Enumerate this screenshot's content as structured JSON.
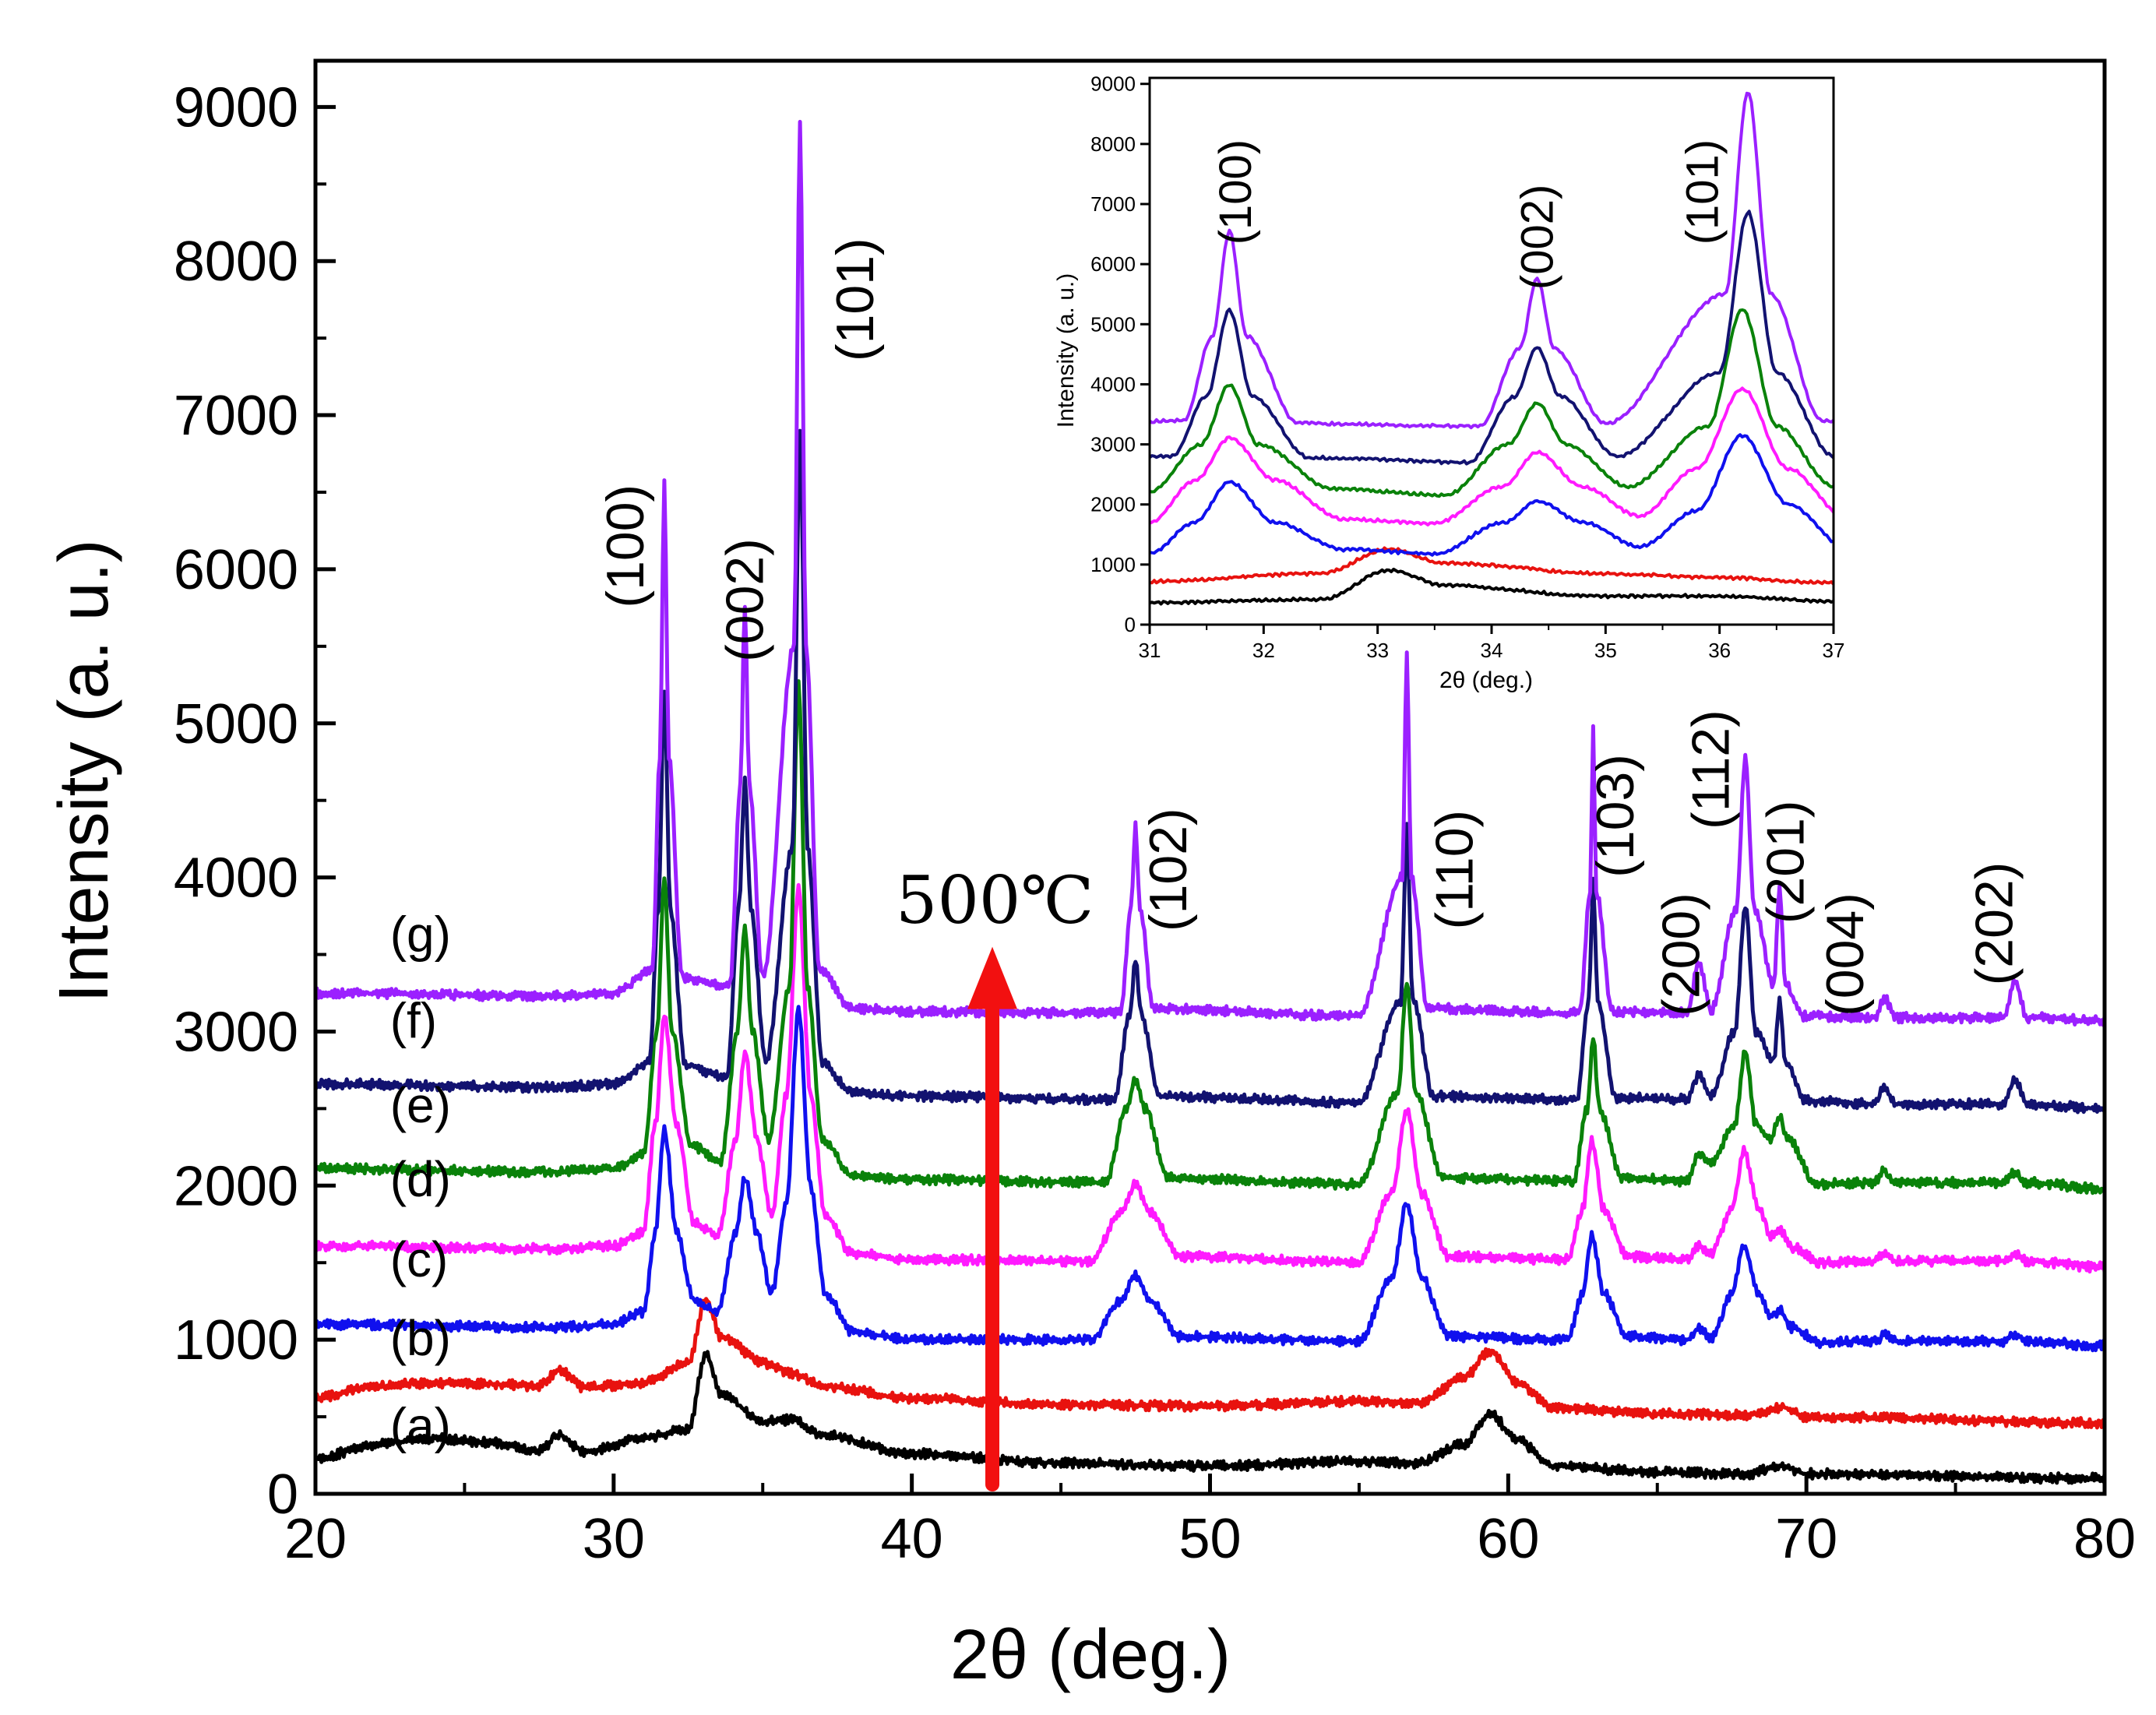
{
  "chart_data": [
    {
      "type": "line",
      "id": "main",
      "xlabel": "2θ (deg.)",
      "ylabel": "Intensity (a. u.)",
      "xlim": [
        20,
        80
      ],
      "ylim": [
        0,
        9300
      ],
      "xticks": [
        "20",
        "30",
        "40",
        "50",
        "60",
        "70",
        "80"
      ],
      "yticks": [
        "0",
        "1000",
        "2000",
        "3000",
        "4000",
        "5000",
        "6000",
        "7000",
        "8000",
        "9000"
      ],
      "annotation": "500℃",
      "arrow": {
        "x": 42.7,
        "y_from": 0,
        "y_to": 3550,
        "color": "#f21010"
      },
      "peak_labels": [
        {
          "text": "(100)",
          "x": 31.0,
          "y": 6150
        },
        {
          "text": "(002)",
          "x": 35.0,
          "y": 5800
        },
        {
          "text": "(101)",
          "x": 38.7,
          "y": 7750
        },
        {
          "text": "(102)",
          "x": 49.2,
          "y": 4050
        },
        {
          "text": "(110)",
          "x": 58.8,
          "y": 4050
        },
        {
          "text": "(103)",
          "x": 64.2,
          "y": 4400
        },
        {
          "text": "(200)",
          "x": 66.4,
          "y": 3500
        },
        {
          "text": "(112)",
          "x": 67.4,
          "y": 4700
        },
        {
          "text": "(201)",
          "x": 69.9,
          "y": 4100
        },
        {
          "text": "(004)",
          "x": 71.9,
          "y": 3500
        },
        {
          "text": "(202)",
          "x": 76.9,
          "y": 3700
        }
      ],
      "series": [
        {
          "name": "(a)",
          "color": "#000000",
          "label_x": 22.5,
          "label_y": 330,
          "x": [
            20,
            22,
            24,
            26,
            27.5,
            28.2,
            29,
            31,
            32.5,
            33.1,
            33.6,
            35,
            36,
            37,
            40,
            45,
            50,
            55,
            57,
            58.5,
            59.4,
            60.3,
            61.5,
            65,
            68,
            69.2,
            70,
            80
          ],
          "y": [
            230,
            320,
            360,
            330,
            280,
            380,
            270,
            360,
            420,
            900,
            650,
            470,
            480,
            380,
            260,
            200,
            180,
            210,
            200,
            320,
            520,
            350,
            180,
            140,
            130,
            180,
            130,
            100
          ]
        },
        {
          "name": "(b)",
          "color": "#e8120f",
          "label_x": 22.5,
          "label_y": 900,
          "x": [
            20,
            22,
            24,
            26,
            27.5,
            28.2,
            29,
            31,
            32.5,
            33.1,
            33.6,
            35,
            36,
            37,
            40,
            45,
            50,
            55,
            57,
            58.5,
            59.4,
            60.3,
            61.5,
            65,
            68,
            69.2,
            70,
            80
          ],
          "y": [
            620,
            700,
            720,
            710,
            700,
            800,
            690,
            720,
            850,
            1260,
            1020,
            850,
            780,
            700,
            620,
            580,
            570,
            600,
            590,
            750,
            930,
            720,
            560,
            520,
            510,
            560,
            500,
            460
          ]
        },
        {
          "name": "(c)",
          "color": "#1010ee",
          "label_x": 22.5,
          "label_y": 1410,
          "x": [
            20,
            28,
            30,
            31,
            31.4,
            31.7,
            32.1,
            32.7,
            33.5,
            34.1,
            34.4,
            34.8,
            35.3,
            35.8,
            36.2,
            36.6,
            37.1,
            38,
            40,
            46,
            47,
            47.5,
            48,
            49,
            55,
            56.1,
            56.6,
            57.1,
            58,
            62,
            62.5,
            62.8,
            63.2,
            64,
            66,
            66.4,
            66.8,
            67.5,
            67.9,
            68.4,
            68.8,
            69.1,
            69.5,
            70.5,
            72.3,
            72.6,
            73,
            76.6,
            77,
            77.4,
            80
          ],
          "y": [
            1100,
            1080,
            1100,
            1180,
            1700,
            2380,
            1700,
            1250,
            1180,
            1700,
            2050,
            1700,
            1300,
            1900,
            3150,
            2000,
            1300,
            1050,
            1000,
            1000,
            1250,
            1420,
            1250,
            1020,
            990,
            1400,
            1880,
            1400,
            1020,
            1000,
            1300,
            1680,
            1300,
            1020,
            1000,
            1070,
            1010,
            1300,
            1610,
            1300,
            1150,
            1190,
            1080,
            980,
            990,
            1030,
            990,
            990,
            1040,
            990,
            960
          ]
        },
        {
          "name": "(d)",
          "color": "#ff1aff",
          "label_x": 22.5,
          "label_y": 1930,
          "x": [
            20,
            28,
            30,
            31,
            31.4,
            31.7,
            32.1,
            32.7,
            33.5,
            34.1,
            34.4,
            34.8,
            35.3,
            35.8,
            36.2,
            36.6,
            37.1,
            38,
            40,
            46,
            47,
            47.5,
            48,
            49,
            55,
            56.1,
            56.6,
            57.1,
            58,
            62,
            62.5,
            62.8,
            63.2,
            64,
            66,
            66.4,
            66.8,
            67.5,
            67.9,
            68.4,
            68.8,
            69.1,
            69.5,
            70.5,
            72.3,
            72.6,
            73,
            76.6,
            77,
            77.4,
            80
          ],
          "y": [
            1610,
            1590,
            1610,
            1700,
            2400,
            3100,
            2400,
            1760,
            1680,
            2300,
            2870,
            2300,
            1800,
            2600,
            3930,
            2600,
            1800,
            1560,
            1520,
            1510,
            1820,
            2010,
            1820,
            1540,
            1500,
            1950,
            2490,
            1950,
            1540,
            1520,
            1850,
            2290,
            1850,
            1540,
            1520,
            1610,
            1560,
            1850,
            2230,
            1850,
            1680,
            1720,
            1600,
            1500,
            1510,
            1560,
            1510,
            1510,
            1560,
            1510,
            1470
          ]
        },
        {
          "name": "(e)",
          "color": "#0a820a",
          "label_x": 22.5,
          "label_y": 2410,
          "x": [
            20,
            28,
            30,
            31,
            31.45,
            31.7,
            31.95,
            32.6,
            33.6,
            34.15,
            34.4,
            34.65,
            35.2,
            35.9,
            36.2,
            36.5,
            37.0,
            38,
            40,
            46.5,
            47.2,
            47.5,
            47.8,
            48.6,
            55,
            56.3,
            56.6,
            56.9,
            57.8,
            62.2,
            62.65,
            62.85,
            63.05,
            63.8,
            66,
            66.4,
            66.8,
            67.6,
            67.95,
            68.3,
            68.8,
            69.1,
            69.4,
            70.3,
            72.3,
            72.6,
            73,
            76.6,
            77,
            77.4,
            80
          ],
          "y": [
            2110,
            2090,
            2110,
            2200,
            3000,
            4000,
            3000,
            2260,
            2160,
            3000,
            3680,
            3000,
            2300,
            3300,
            5250,
            3300,
            2300,
            2060,
            2040,
            2020,
            2500,
            2690,
            2500,
            2050,
            2010,
            2600,
            3310,
            2600,
            2050,
            2030,
            2500,
            2960,
            2500,
            2050,
            2030,
            2210,
            2150,
            2400,
            2870,
            2400,
            2300,
            2440,
            2300,
            2010,
            2020,
            2100,
            2020,
            2020,
            2090,
            2020,
            1980
          ]
        },
        {
          "name": "(f)",
          "color": "#121270",
          "label_x": 22.5,
          "label_y": 2960,
          "x": [
            20,
            28,
            30,
            31.2,
            31.5,
            31.7,
            31.9,
            32.4,
            33.8,
            34.2,
            34.4,
            34.6,
            35.1,
            36.0,
            36.25,
            36.5,
            37.0,
            38,
            40,
            46.8,
            47.3,
            47.5,
            47.7,
            48.3,
            55,
            56.4,
            56.6,
            56.8,
            57.5,
            62.3,
            62.7,
            62.85,
            63.0,
            63.6,
            66,
            66.4,
            66.8,
            67.6,
            67.95,
            68.3,
            68.9,
            69.1,
            69.3,
            70.0,
            72.3,
            72.6,
            73,
            76.6,
            77,
            77.4,
            80
          ],
          "y": [
            2660,
            2640,
            2660,
            2800,
            3800,
            5230,
            3800,
            2780,
            2700,
            3800,
            4620,
            3800,
            2800,
            4200,
            6870,
            4200,
            2800,
            2600,
            2580,
            2560,
            3100,
            3460,
            3100,
            2580,
            2540,
            3200,
            4320,
            3200,
            2580,
            2560,
            3200,
            3960,
            3200,
            2570,
            2560,
            2720,
            2580,
            3000,
            3810,
            3000,
            2800,
            3190,
            2800,
            2550,
            2530,
            2640,
            2530,
            2530,
            2680,
            2530,
            2500
          ]
        },
        {
          "name": "(g)",
          "color": "#9b20ff",
          "label_x": 22.5,
          "label_y": 3520,
          "x": [
            20,
            28,
            30,
            31.3,
            31.55,
            31.7,
            31.85,
            32.3,
            33.9,
            34.25,
            34.4,
            34.55,
            35.0,
            36.05,
            36.25,
            36.45,
            36.9,
            38,
            40,
            47.0,
            47.35,
            47.5,
            47.65,
            48.1,
            55,
            56.45,
            56.6,
            56.75,
            57.3,
            62.4,
            62.75,
            62.85,
            62.95,
            63.5,
            66,
            66.4,
            66.8,
            67.65,
            67.95,
            68.25,
            68.9,
            69.1,
            69.3,
            69.9,
            72.3,
            72.6,
            73,
            76.6,
            77,
            77.4,
            80
          ],
          "y": [
            3250,
            3230,
            3250,
            3400,
            4800,
            6550,
            4800,
            3350,
            3300,
            4600,
            5770,
            4600,
            3350,
            5500,
            8880,
            5500,
            3400,
            3150,
            3130,
            3120,
            3800,
            4340,
            3800,
            3150,
            3100,
            4000,
            5450,
            4000,
            3150,
            3120,
            3900,
            4970,
            3900,
            3130,
            3120,
            3450,
            3140,
            3800,
            4780,
            3800,
            3300,
            3930,
            3300,
            3100,
            3090,
            3220,
            3090,
            3090,
            3330,
            3090,
            3070
          ]
        }
      ]
    },
    {
      "type": "line",
      "id": "inset",
      "xlabel": "2θ (deg.)",
      "ylabel": "Intensity (a. u.)",
      "xlim": [
        31,
        37
      ],
      "ylim": [
        0,
        9100
      ],
      "xticks": [
        "31",
        "32",
        "33",
        "34",
        "35",
        "36",
        "37"
      ],
      "yticks": [
        "0",
        "1000",
        "2000",
        "3000",
        "4000",
        "5000",
        "6000",
        "7000",
        "8000",
        "9000"
      ],
      "peak_labels": [
        {
          "text": "(100)",
          "x": 31.75,
          "y": 7200
        },
        {
          "text": "(002)",
          "x": 34.4,
          "y": 6450
        },
        {
          "text": "(101)",
          "x": 35.85,
          "y": 7200
        }
      ]
    }
  ]
}
